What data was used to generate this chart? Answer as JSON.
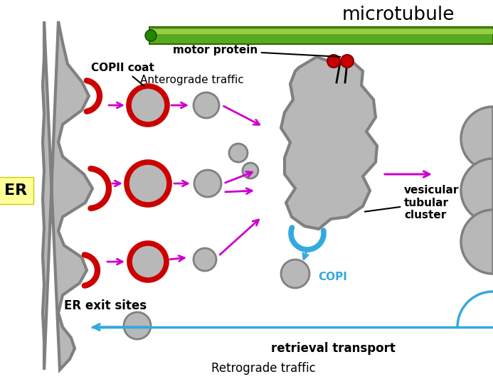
{
  "title": "microtubule",
  "bg_color": "#ffffff",
  "gray_fill": "#b8b8b8",
  "gray_outline": "#808080",
  "red_color": "#cc0000",
  "magenta_color": "#cc00cc",
  "blue_color": "#33aadd",
  "green_tube_color": "#55aa22",
  "green_tube_light": "#99cc44",
  "er_label": "ER",
  "er_label_bg": "#ffff99",
  "er_exit_label": "ER exit sites",
  "anterograde_label": "Anterograde traffic",
  "retrograde_label": "Retrograde traffic",
  "retrieval_label": "retrieval transport",
  "copii_label": "COPII coat",
  "motor_label": "motor protein",
  "copi_label": "COPI",
  "vtc_label": "vesicular\ntubular\ncluster"
}
